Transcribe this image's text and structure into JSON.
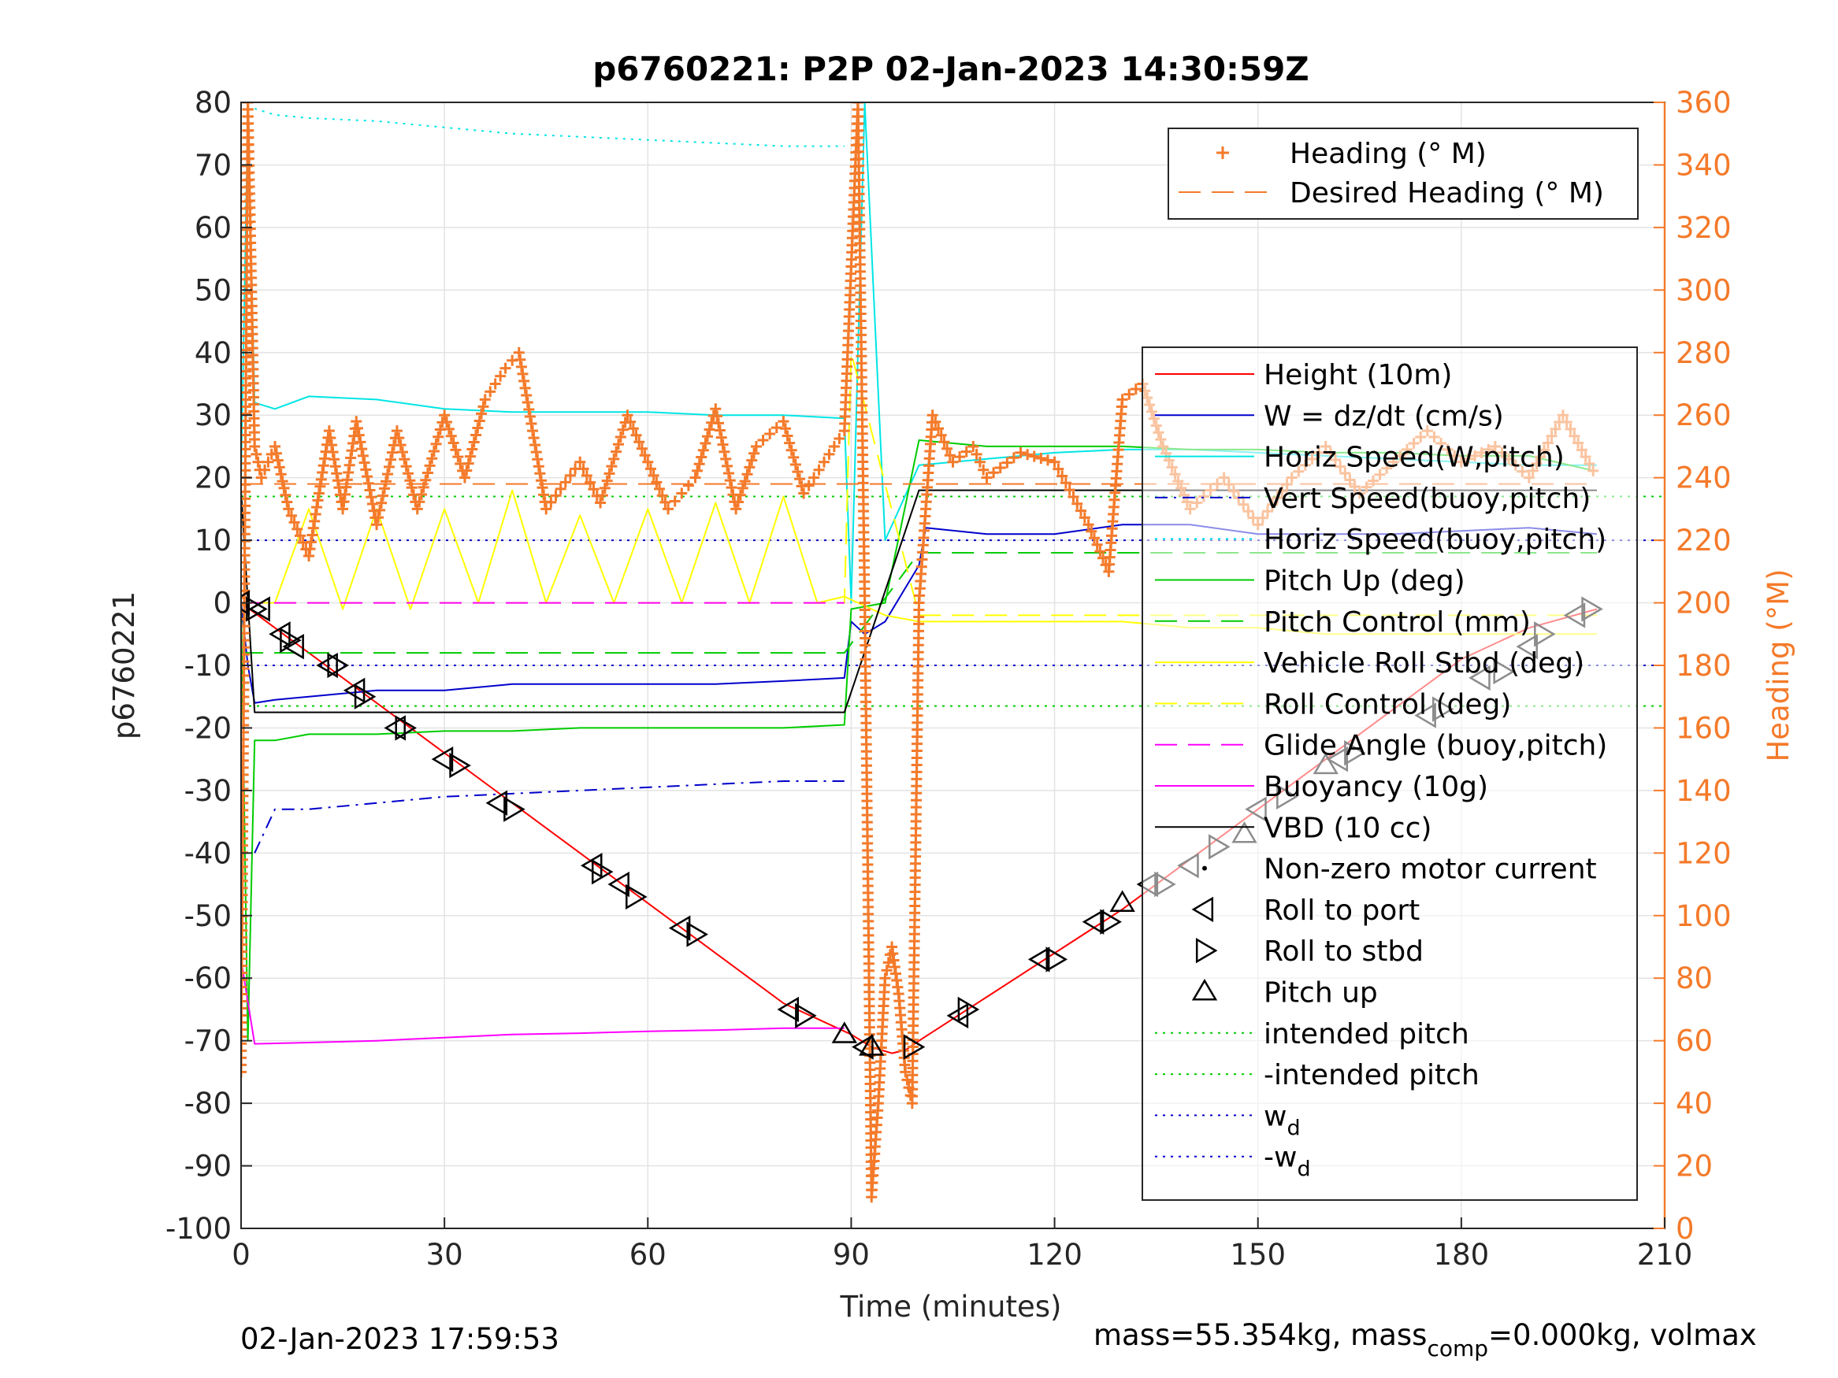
{
  "chart_data": {
    "type": "line",
    "title": "p6760221: P2P 02-Jan-2023 14:30:59Z",
    "xlabel": "Time (minutes)",
    "ylabel": "p6760221",
    "y2label": "Heading (°M)",
    "xlim": [
      0,
      210
    ],
    "ylim": [
      -100,
      80
    ],
    "y2lim": [
      0,
      360
    ],
    "xticks": [
      0,
      30,
      60,
      90,
      120,
      150,
      180,
      210
    ],
    "yticks": [
      -100,
      -90,
      -80,
      -70,
      -60,
      -50,
      -40,
      -30,
      -20,
      -10,
      0,
      10,
      20,
      30,
      40,
      50,
      60,
      70,
      80
    ],
    "y2ticks": [
      0,
      20,
      40,
      60,
      80,
      100,
      120,
      140,
      160,
      180,
      200,
      220,
      240,
      260,
      280,
      300,
      320,
      340,
      360
    ],
    "xtick_labels": [
      "0",
      "30",
      "60",
      "90",
      "120",
      "150",
      "180",
      "210"
    ],
    "ytick_labels": [
      "-100",
      "-90",
      "-80",
      "-70",
      "-60",
      "-50",
      "-40",
      "-30",
      "-20",
      "-10",
      "0",
      "10",
      "20",
      "30",
      "40",
      "50",
      "60",
      "70",
      "80"
    ],
    "y2tick_labels": [
      "0",
      "20",
      "40",
      "60",
      "80",
      "100",
      "120",
      "140",
      "160",
      "180",
      "200",
      "220",
      "240",
      "260",
      "280",
      "300",
      "320",
      "340",
      "360"
    ],
    "grid": true,
    "footer_left": "02-Jan-2023 17:59:53",
    "footer_right": {
      "pre": "mass=55.354kg, mass",
      "sub": "comp",
      "post": "=0.000kg, volmax"
    },
    "legend_top": {
      "placement": "top-right",
      "entries": [
        {
          "label": "Heading (° M)",
          "color": "#f47a2a",
          "style": "marker-plus"
        },
        {
          "label": "Desired Heading (° M)",
          "color": "#f47a2a",
          "style": "dashed"
        }
      ]
    },
    "legend_main": {
      "placement": "right",
      "entries": [
        {
          "label": "Height (10m)",
          "color": "#ff0000",
          "style": "solid"
        },
        {
          "label": "W = dz/dt (cm/s)",
          "color": "#0000cc",
          "style": "solid"
        },
        {
          "label": "Horiz Speed(W,pitch)",
          "color": "#00e5e5",
          "style": "solid"
        },
        {
          "label": "Vert Speed(buoy,pitch)",
          "color": "#0000cc",
          "style": "dashdot"
        },
        {
          "label": "Horiz Speed(buoy,pitch)",
          "color": "#00e5e5",
          "style": "dotted"
        },
        {
          "label": "Pitch Up (deg)",
          "color": "#00cc00",
          "style": "solid"
        },
        {
          "label": "Pitch Control (mm)",
          "color": "#00cc00",
          "style": "dashed"
        },
        {
          "label": "Vehicle Roll Stbd (deg)",
          "color": "#ffff00",
          "style": "solid"
        },
        {
          "label": "Roll Control (deg)",
          "color": "#ffff00",
          "style": "dashed"
        },
        {
          "label": "Glide Angle (buoy,pitch)",
          "color": "#ff00ff",
          "style": "dashed"
        },
        {
          "label": "Buoyancy (10g)",
          "color": "#ff00ff",
          "style": "solid"
        },
        {
          "label": "VBD (10 cc)",
          "color": "#000000",
          "style": "solid"
        },
        {
          "label": "Non-zero motor current",
          "color": "#000000",
          "style": "dot"
        },
        {
          "label": "Roll to port",
          "color": "#000000",
          "style": "tri-left"
        },
        {
          "label": "Roll to stbd",
          "color": "#000000",
          "style": "tri-right"
        },
        {
          "label": "Pitch up",
          "color": "#000000",
          "style": "tri-up"
        },
        {
          "label": "intended pitch",
          "color": "#00cc00",
          "style": "dotted"
        },
        {
          "label": "-intended pitch",
          "color": "#00cc00",
          "style": "dotted"
        },
        {
          "label": "w",
          "sub": "d",
          "color": "#0000cc",
          "style": "dotted"
        },
        {
          "label": "-w",
          "sub": "d",
          "color": "#0000cc",
          "style": "dotted"
        }
      ]
    },
    "reference_lines": [
      {
        "name": "intended pitch",
        "y": 17,
        "color": "#00cc00"
      },
      {
        "name": "-intended pitch",
        "y": -16.5,
        "color": "#00cc00"
      },
      {
        "name": "wd",
        "y": 10,
        "color": "#0000cc"
      },
      {
        "name": "-wd",
        "y": -10,
        "color": "#0000cc"
      }
    ],
    "series": [
      {
        "name": "Height (10m)",
        "axis": "left",
        "color": "#ff0000",
        "style": "solid",
        "x": [
          0,
          10,
          20,
          30,
          40,
          50,
          60,
          70,
          80,
          90,
          93,
          96,
          98,
          100,
          110,
          120,
          130,
          140,
          150,
          160,
          170,
          180,
          190,
          200
        ],
        "y": [
          0,
          -8,
          -16,
          -24,
          -32,
          -40,
          -48,
          -56,
          -64,
          -69,
          -71,
          -72,
          -71.5,
          -70,
          -63,
          -56,
          -49,
          -41,
          -33,
          -25,
          -17,
          -9,
          -4,
          -1
        ]
      },
      {
        "name": "W = dz/dt (cm/s)",
        "axis": "left",
        "color": "#0000cc",
        "style": "solid",
        "x": [
          0,
          1,
          2,
          5,
          10,
          20,
          30,
          40,
          50,
          60,
          70,
          80,
          89,
          90,
          92,
          95,
          100,
          101,
          110,
          120,
          130,
          140,
          150,
          160,
          170,
          180,
          190,
          200
        ],
        "y": [
          0,
          -10,
          -16,
          -15.5,
          -15,
          -14,
          -14,
          -13,
          -13,
          -13,
          -13,
          -12.5,
          -12,
          -3,
          -5,
          -3,
          6,
          12,
          11,
          11,
          12.5,
          12.5,
          11,
          11,
          11,
          11.5,
          12,
          11
        ]
      },
      {
        "name": "Vert Speed(buoy,pitch)",
        "axis": "left",
        "color": "#0000cc",
        "style": "dashdot",
        "x": [
          2,
          5,
          10,
          20,
          30,
          40,
          50,
          60,
          70,
          80,
          89
        ],
        "y": [
          -40,
          -33,
          -33,
          -32,
          -31,
          -30.5,
          -30,
          -29.5,
          -29,
          -28.5,
          -28.5
        ]
      },
      {
        "name": "Horiz Speed(W,pitch)",
        "axis": "left",
        "color": "#00e5e5",
        "style": "solid",
        "x": [
          0,
          1,
          2,
          5,
          10,
          20,
          30,
          40,
          50,
          60,
          70,
          80,
          89,
          90,
          92,
          95,
          100,
          110,
          120,
          130,
          140,
          150,
          160,
          170,
          180,
          190,
          200
        ],
        "y": [
          20,
          78,
          32,
          31,
          33,
          32.5,
          31,
          30.5,
          30.5,
          30.5,
          30,
          30,
          29.5,
          0,
          80,
          10,
          22,
          23,
          24,
          24.5,
          24.5,
          24,
          23.5,
          23,
          22.5,
          22,
          22
        ]
      },
      {
        "name": "Horiz Speed(buoy,pitch)",
        "axis": "left",
        "color": "#00e5e5",
        "style": "dotted",
        "x": [
          2,
          5,
          10,
          20,
          30,
          40,
          50,
          60,
          70,
          80,
          89
        ],
        "y": [
          79,
          78,
          77.5,
          77,
          76,
          75,
          74.5,
          74,
          73.5,
          73,
          73
        ]
      },
      {
        "name": "Pitch Up (deg)",
        "axis": "left",
        "color": "#00cc00",
        "style": "solid",
        "x": [
          0,
          1,
          2,
          5,
          10,
          20,
          30,
          40,
          50,
          60,
          70,
          80,
          89,
          90,
          95,
          100,
          110,
          120,
          130,
          140,
          150,
          160,
          170,
          180,
          190,
          200
        ],
        "y": [
          0,
          -70,
          -22,
          -22,
          -21,
          -21,
          -20.5,
          -20.5,
          -20,
          -20,
          -20,
          -20,
          -19.5,
          -1,
          0,
          26,
          25,
          25,
          25,
          24.5,
          24.5,
          24,
          24,
          23.5,
          23.5,
          21
        ]
      },
      {
        "name": "Pitch Control (mm)",
        "axis": "left",
        "color": "#00cc00",
        "style": "dashed",
        "x": [
          0,
          89,
          100,
          200
        ],
        "y": [
          -8,
          -8,
          8,
          8
        ]
      },
      {
        "name": "Vehicle Roll Stbd (deg)",
        "axis": "left",
        "color": "#ffff00",
        "style": "solid",
        "x": [
          0,
          2,
          5,
          10,
          15,
          20,
          25,
          30,
          35,
          40,
          45,
          50,
          55,
          60,
          65,
          70,
          75,
          80,
          85,
          89,
          95,
          100,
          110,
          120,
          130,
          140,
          150,
          160,
          170,
          180,
          190,
          200
        ],
        "y": [
          0,
          0,
          0,
          15,
          -1,
          15,
          -1,
          15,
          0,
          18,
          0,
          14,
          0,
          15,
          0,
          16,
          0,
          17,
          0,
          1,
          -2,
          -3,
          -3,
          -3,
          -3,
          -4,
          -4,
          -5,
          -5,
          -5,
          -5,
          -5
        ]
      },
      {
        "name": "Roll Control (deg)",
        "axis": "left",
        "color": "#ffff00",
        "style": "dashed",
        "x": [
          0,
          89,
          90,
          100,
          200
        ],
        "y": [
          0,
          0,
          40,
          -2,
          -2
        ]
      },
      {
        "name": "Glide Angle (buoy,pitch)",
        "axis": "left",
        "color": "#ff00ff",
        "style": "dashed",
        "x": [
          0,
          89
        ],
        "y": [
          0,
          0
        ]
      },
      {
        "name": "Buoyancy (10g)",
        "axis": "left",
        "color": "#ff00ff",
        "style": "solid",
        "x": [
          0,
          2,
          10,
          20,
          30,
          40,
          50,
          60,
          70,
          80,
          89
        ],
        "y": [
          -57,
          -70.5,
          -70.3,
          -70,
          -69.5,
          -69,
          -68.8,
          -68.5,
          -68.3,
          -68,
          -68
        ]
      },
      {
        "name": "VBD (10 cc)",
        "axis": "left",
        "color": "#000000",
        "style": "solid",
        "x": [
          0,
          2,
          89,
          100,
          200
        ],
        "y": [
          18,
          -17.5,
          -17.5,
          18,
          18
        ]
      },
      {
        "name": "Heading (° M)",
        "axis": "right",
        "color": "#f47a2a",
        "style": "marker-plus",
        "x": [
          0,
          1,
          2,
          3,
          5,
          7,
          10,
          13,
          15,
          17,
          20,
          23,
          26,
          30,
          33,
          36,
          39,
          41,
          45,
          50,
          53,
          57,
          60,
          63,
          67,
          70,
          73,
          76,
          80,
          83,
          86,
          89,
          91,
          92,
          93,
          94,
          95,
          96,
          97,
          98,
          99,
          100,
          102,
          105,
          108,
          110,
          115,
          120,
          125,
          128,
          130,
          133,
          136,
          140,
          145,
          150,
          155,
          160,
          165,
          170,
          175,
          180,
          185,
          190,
          195,
          200
        ],
        "y": [
          50,
          360,
          250,
          240,
          250,
          230,
          215,
          255,
          230,
          258,
          225,
          255,
          230,
          260,
          240,
          265,
          275,
          280,
          230,
          245,
          232,
          260,
          245,
          230,
          240,
          262,
          230,
          250,
          258,
          235,
          245,
          255,
          360,
          200,
          10,
          40,
          80,
          90,
          75,
          50,
          40,
          200,
          260,
          245,
          250,
          240,
          248,
          245,
          225,
          210,
          265,
          270,
          250,
          230,
          240,
          225,
          240,
          250,
          235,
          245,
          255,
          245,
          250,
          240,
          260,
          240
        ]
      },
      {
        "name": "Desired Heading (° M)",
        "axis": "right",
        "color": "#f47a2a",
        "style": "dashed",
        "x": [
          0,
          200
        ],
        "y": [
          238,
          238
        ]
      }
    ],
    "markers": {
      "roll_to_port": [
        [
          0,
          0
        ],
        [
          3,
          -1
        ],
        [
          6,
          -5
        ],
        [
          8,
          -7
        ],
        [
          13,
          -10
        ],
        [
          17,
          -14
        ],
        [
          23,
          -20
        ],
        [
          30,
          -25
        ],
        [
          38,
          -32
        ],
        [
          52,
          -42
        ],
        [
          56,
          -45
        ],
        [
          65,
          -52
        ],
        [
          81,
          -65
        ],
        [
          92,
          -71
        ],
        [
          106,
          -66
        ],
        [
          118,
          -57
        ],
        [
          126,
          -51
        ],
        [
          134,
          -45
        ],
        [
          140,
          -42
        ],
        [
          150,
          -33
        ],
        [
          162,
          -25
        ],
        [
          175,
          -18
        ],
        [
          183,
          -12
        ],
        [
          190,
          -7
        ],
        [
          197,
          -2
        ]
      ],
      "roll_to_stbd": [
        [
          2,
          -1
        ],
        [
          7,
          -6
        ],
        [
          14,
          -10
        ],
        [
          18,
          -15
        ],
        [
          24,
          -20
        ],
        [
          32,
          -26
        ],
        [
          40,
          -33
        ],
        [
          53,
          -43
        ],
        [
          58,
          -47
        ],
        [
          67,
          -53
        ],
        [
          83,
          -66
        ],
        [
          99,
          -71
        ],
        [
          107,
          -65
        ],
        [
          120,
          -57
        ],
        [
          128,
          -51
        ],
        [
          136,
          -45
        ],
        [
          144,
          -39
        ],
        [
          154,
          -31
        ],
        [
          164,
          -24
        ],
        [
          177,
          -17
        ],
        [
          186,
          -11
        ],
        [
          192,
          -5
        ],
        [
          199,
          -1
        ]
      ],
      "pitch_up": [
        [
          89,
          -69
        ],
        [
          93,
          -71
        ],
        [
          130,
          -48
        ],
        [
          148,
          -37
        ],
        [
          160,
          -26
        ]
      ]
    }
  }
}
